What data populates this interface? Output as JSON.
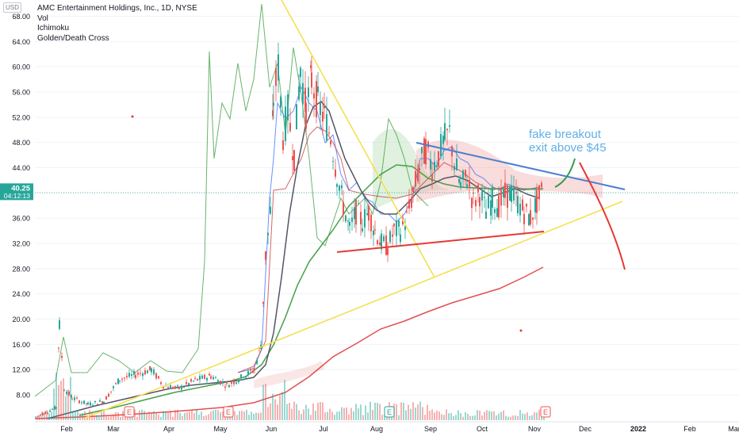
{
  "header": {
    "symbol_title": "AMC Entertainment Holdings, Inc., 1D, NYSE",
    "indicators": [
      "Vol",
      "Ichimoku",
      "Golden/Death Cross"
    ],
    "currency_badge": "USD"
  },
  "price_badge": {
    "price": "40.25",
    "countdown": "04:12:13",
    "color": "#26a69a"
  },
  "annotation": {
    "line1": "fake breakout",
    "line2": "exit above $45",
    "color": "#5fb0e6"
  },
  "earnings_markers": [
    "E",
    "E",
    "E",
    "E"
  ],
  "colors": {
    "up_candle": "#26a69a",
    "down_candle": "#ef5350",
    "trendline_yellow": "#f5e050",
    "trendline_blue": "#4a7fd0",
    "support_red": "#e53935",
    "ma_long_red": "#e05050",
    "ma_green": "#43a047",
    "ma_dark": "#555566",
    "projection_green": "#2e9e4a",
    "projection_red": "#e53935"
  },
  "chart_data": {
    "type": "candlestick",
    "title": "AMC Entertainment Holdings, Inc., 1D, NYSE",
    "y_axis": {
      "ticks": [
        8,
        12,
        16,
        20,
        24,
        28,
        32,
        36,
        40,
        44,
        48,
        52,
        56,
        60,
        64,
        68
      ],
      "tick_labels": [
        "8.00",
        "12.00",
        "16.00",
        "20.00",
        "24.00",
        "28.00",
        "32.00",
        "36.00",
        "40.00",
        "44.00",
        "48.00",
        "52.00",
        "56.00",
        "60.00",
        "64.00",
        "68.00"
      ],
      "ylim": [
        3.5,
        69
      ]
    },
    "x_axis": {
      "tick_labels": [
        "Feb",
        "Mar",
        "Apr",
        "May",
        "Jun",
        "Jul",
        "Aug",
        "Sep",
        "Oct",
        "Nov",
        "Dec",
        "2022",
        "Feb",
        "Mar"
      ],
      "bold_tick": "2022"
    },
    "last_price": 40.25,
    "approximate_monthly_path": [
      {
        "period": "Jan",
        "price": 4.0
      },
      {
        "period": "late Jan",
        "price": 19.0
      },
      {
        "period": "Feb",
        "price": 6.5
      },
      {
        "period": "Mar",
        "price": 11.0
      },
      {
        "period": "Apr",
        "price": 9.5
      },
      {
        "period": "May",
        "price": 10.0
      },
      {
        "period": "early Jun",
        "price": 62.5
      },
      {
        "period": "late Jun",
        "price": 55.0
      },
      {
        "period": "Jul",
        "price": 36.0
      },
      {
        "period": "Aug",
        "price": 33.0
      },
      {
        "period": "early Sep",
        "price": 49.5
      },
      {
        "period": "Oct",
        "price": 38.0
      },
      {
        "period": "Nov",
        "price": 40.25
      }
    ]
  }
}
